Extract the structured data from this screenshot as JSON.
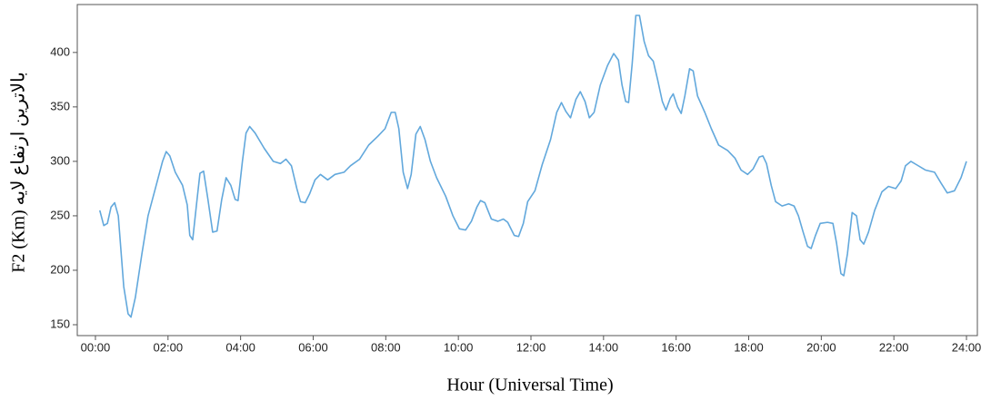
{
  "chart_data": {
    "type": "line",
    "x_label": "Hour (Universal Time)",
    "y_label": "بالاترين ارتفاع لايه F2 (Km)",
    "xlim": [
      -0.5,
      24.3
    ],
    "ylim": [
      140,
      444
    ],
    "xticks": [
      {
        "value": 0,
        "label": "00:00"
      },
      {
        "value": 2,
        "label": "02:00"
      },
      {
        "value": 4,
        "label": "04:00"
      },
      {
        "value": 6,
        "label": "06:00"
      },
      {
        "value": 8,
        "label": "08:00"
      },
      {
        "value": 10,
        "label": "10:00"
      },
      {
        "value": 12,
        "label": "12:00"
      },
      {
        "value": 14,
        "label": "14:00"
      },
      {
        "value": 16,
        "label": "16:00"
      },
      {
        "value": 18,
        "label": "18:00"
      },
      {
        "value": 20,
        "label": "20:00"
      },
      {
        "value": 22,
        "label": "22:00"
      },
      {
        "value": 24,
        "label": "24:00"
      }
    ],
    "yticks": [
      150,
      200,
      250,
      300,
      350,
      400
    ],
    "color": "#62a8dc",
    "x": [
      0.12,
      0.23,
      0.33,
      0.43,
      0.53,
      0.63,
      0.78,
      0.9,
      0.98,
      1.1,
      1.28,
      1.45,
      1.65,
      1.85,
      1.95,
      2.05,
      2.2,
      2.4,
      2.53,
      2.6,
      2.68,
      2.8,
      2.88,
      2.98,
      3.1,
      3.23,
      3.35,
      3.48,
      3.6,
      3.73,
      3.85,
      3.93,
      4.05,
      4.15,
      4.25,
      4.4,
      4.65,
      4.9,
      5.1,
      5.25,
      5.4,
      5.55,
      5.65,
      5.78,
      5.9,
      6.05,
      6.2,
      6.4,
      6.6,
      6.85,
      7.03,
      7.28,
      7.53,
      7.78,
      7.98,
      8.15,
      8.26,
      8.36,
      8.48,
      8.6,
      8.7,
      8.83,
      8.95,
      9.08,
      9.23,
      9.4,
      9.65,
      9.85,
      10.03,
      10.2,
      10.36,
      10.51,
      10.61,
      10.73,
      10.91,
      11.09,
      11.24,
      11.36,
      11.54,
      11.66,
      11.79,
      11.91,
      12.11,
      12.31,
      12.54,
      12.71,
      12.84,
      12.96,
      13.09,
      13.24,
      13.36,
      13.49,
      13.61,
      13.74,
      13.91,
      14.11,
      14.28,
      14.41,
      14.51,
      14.61,
      14.69,
      14.79,
      14.89,
      14.99,
      15.12,
      15.24,
      15.37,
      15.49,
      15.62,
      15.72,
      15.84,
      15.92,
      16.04,
      16.14,
      16.24,
      16.37,
      16.47,
      16.59,
      16.79,
      16.97,
      17.17,
      17.42,
      17.62,
      17.79,
      17.97,
      18.12,
      18.29,
      18.39,
      18.49,
      18.62,
      18.74,
      18.92,
      19.1,
      19.25,
      19.37,
      19.5,
      19.62,
      19.72,
      19.84,
      19.97,
      20.17,
      20.32,
      20.42,
      20.54,
      20.62,
      20.72,
      20.85,
      20.97,
      21.07,
      21.17,
      21.3,
      21.47,
      21.67,
      21.85,
      22.05,
      22.2,
      22.32,
      22.47,
      22.62,
      22.87,
      23.12,
      23.3,
      23.47,
      23.67,
      23.85,
      24.0
    ],
    "values": [
      255,
      241,
      243,
      258,
      262,
      250,
      185,
      160,
      157,
      175,
      215,
      250,
      275,
      300,
      309,
      305,
      290,
      278,
      260,
      232,
      228,
      265,
      289,
      291,
      265,
      235,
      236,
      265,
      285,
      278,
      265,
      264,
      300,
      326,
      332,
      326,
      312,
      300,
      298,
      302,
      296,
      275,
      263,
      262,
      270,
      283,
      288,
      283,
      288,
      290,
      296,
      302,
      315,
      323,
      330,
      345,
      345,
      330,
      290,
      275,
      288,
      325,
      332,
      320,
      300,
      285,
      268,
      250,
      238,
      237,
      245,
      258,
      264,
      262,
      247,
      245,
      247,
      244,
      232,
      231,
      243,
      263,
      273,
      297,
      320,
      345,
      354,
      346,
      340,
      357,
      364,
      355,
      340,
      345,
      370,
      388,
      399,
      393,
      370,
      355,
      354,
      390,
      434,
      434,
      410,
      397,
      392,
      375,
      355,
      347,
      358,
      362,
      350,
      344,
      360,
      385,
      383,
      360,
      345,
      330,
      315,
      310,
      303,
      292,
      288,
      293,
      304,
      305,
      298,
      278,
      263,
      259,
      261,
      259,
      250,
      235,
      222,
      220,
      232,
      243,
      244,
      243,
      225,
      197,
      195,
      215,
      253,
      250,
      228,
      224,
      235,
      255,
      272,
      277,
      275,
      282,
      296,
      300,
      297,
      292,
      290,
      280,
      271,
      273,
      285,
      300
    ]
  }
}
